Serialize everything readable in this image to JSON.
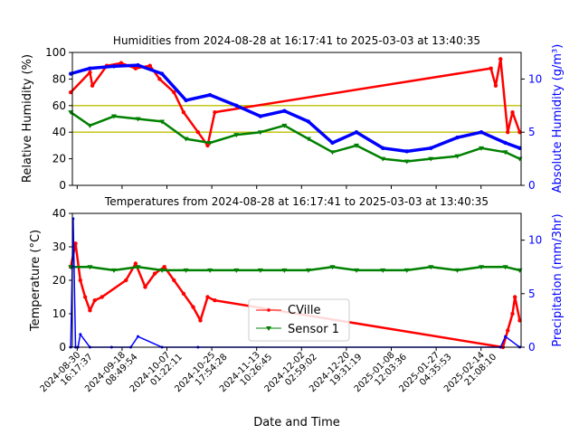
{
  "colors": {
    "cville": "#ff0000",
    "sensor": "#008000",
    "absolute": "#0000ff",
    "precip": "#0000ff",
    "limits": "#bfbf00",
    "axis": "#000000"
  },
  "xlabel": "Date and Time",
  "xticks": [
    {
      "t": "2024-08-30T16:17:37",
      "line1": "2024-08-30",
      "line2": "16:17:37"
    },
    {
      "t": "2024-09-18T08:49:54",
      "line1": "2024-09-18",
      "line2": "08:49:54"
    },
    {
      "t": "2024-10-07T01:22:11",
      "line1": "2024-10-07",
      "line2": "01:22:11"
    },
    {
      "t": "2024-10-25T17:54:28",
      "line1": "2024-10-25",
      "line2": "17:54:28"
    },
    {
      "t": "2024-11-13T10:26:45",
      "line1": "2024-11-13",
      "line2": "10:26:45"
    },
    {
      "t": "2024-12-02T02:59:02",
      "line1": "2024-12-02",
      "line2": "02:59:02"
    },
    {
      "t": "2024-12-20T19:31:19",
      "line1": "2024-12-20",
      "line2": "19:31:19"
    },
    {
      "t": "2025-01-08T12:03:36",
      "line1": "2025-01-08",
      "line2": "12:03:36"
    },
    {
      "t": "2025-01-27T04:35:53",
      "line1": "2025-01-27",
      "line2": "04:35:53"
    },
    {
      "t": "2025-02-14T21:08:10",
      "line1": "2025-02-14",
      "line2": "21:08:10"
    }
  ],
  "xlim": [
    "2024-08-28T16:17:41",
    "2025-03-03T13:40:35"
  ],
  "chart_data": [
    {
      "type": "line",
      "title": "Humidities from 2024-08-28 at 16:17:41 to 2025-03-03 at 13:40:35",
      "ylabel": "Relative Humidity (%)",
      "ylabel_right": "Absolute Humidity (g/m³)",
      "ylim": [
        0,
        100
      ],
      "yticks": [
        0,
        20,
        40,
        60,
        80,
        100
      ],
      "ylim_right": [
        0,
        12.5
      ],
      "yticks_right": [
        0,
        5,
        10
      ],
      "reference_lines": [
        40,
        60
      ],
      "series": [
        {
          "axis": "left",
          "color": "#ff0000",
          "x": [
            "2024-08-28",
            "2024-09-05",
            "2024-09-06",
            "2024-09-12",
            "2024-09-18",
            "2024-09-24",
            "2024-09-30",
            "2024-10-04",
            "2024-10-10",
            "2024-10-14",
            "2024-10-20",
            "2024-10-24",
            "2024-10-27",
            "2025-02-19",
            "2025-02-21",
            "2025-02-23",
            "2025-02-26",
            "2025-02-28",
            "2025-03-03"
          ],
          "y": [
            70,
            85,
            75,
            90,
            92,
            88,
            90,
            80,
            70,
            55,
            40,
            30,
            55,
            88,
            75,
            95,
            40,
            55,
            40
          ]
        },
        {
          "axis": "left",
          "color": "#008000",
          "x": [
            "2024-08-28",
            "2024-09-05",
            "2024-09-15",
            "2024-09-25",
            "2024-10-05",
            "2024-10-15",
            "2024-10-25",
            "2024-11-05",
            "2024-11-15",
            "2024-11-25",
            "2024-12-05",
            "2024-12-15",
            "2024-12-25",
            "2025-01-05",
            "2025-01-15",
            "2025-01-25",
            "2025-02-05",
            "2025-02-15",
            "2025-02-25",
            "2025-03-03"
          ],
          "y": [
            55,
            45,
            52,
            50,
            48,
            35,
            32,
            38,
            40,
            45,
            35,
            25,
            30,
            20,
            18,
            20,
            22,
            28,
            25,
            20
          ]
        },
        {
          "axis": "right",
          "color": "#0000ff",
          "x": [
            "2024-08-28",
            "2024-09-05",
            "2024-09-15",
            "2024-09-25",
            "2024-10-05",
            "2024-10-15",
            "2024-10-25",
            "2024-11-05",
            "2024-11-15",
            "2024-11-25",
            "2024-12-05",
            "2024-12-15",
            "2024-12-25",
            "2025-01-05",
            "2025-01-15",
            "2025-01-25",
            "2025-02-05",
            "2025-02-15",
            "2025-02-25",
            "2025-03-03"
          ],
          "y": [
            10.5,
            11,
            11.2,
            11.3,
            10.5,
            8,
            8.5,
            7.5,
            6.5,
            7,
            6,
            4,
            5,
            3.5,
            3.2,
            3.5,
            4.5,
            5,
            4,
            3.5
          ]
        }
      ]
    },
    {
      "type": "line",
      "title": "Temperatures from 2024-08-28 at 16:17:41 to 2025-03-03 at 13:40:35",
      "ylabel": "Temperature (°C)",
      "ylabel_right": "Precipitation (mm/3hr)",
      "ylim": [
        0,
        40
      ],
      "yticks": [
        0,
        10,
        20,
        30,
        40
      ],
      "ylim_right": [
        0,
        12.5
      ],
      "yticks_right": [
        0,
        5,
        10
      ],
      "legend": {
        "position": "center",
        "entries": [
          "CVille",
          "Sensor 1"
        ]
      },
      "series": [
        {
          "name": "CVille",
          "axis": "left",
          "color": "#ff0000",
          "x": [
            "2024-08-28",
            "2024-08-30",
            "2024-09-01",
            "2024-09-03",
            "2024-09-05",
            "2024-09-07",
            "2024-09-10",
            "2024-09-20",
            "2024-09-24",
            "2024-09-28",
            "2024-10-02",
            "2024-10-06",
            "2024-10-10",
            "2024-10-14",
            "2024-10-18",
            "2024-10-21",
            "2024-10-24",
            "2024-10-27",
            "2025-02-24",
            "2025-02-26",
            "2025-02-28",
            "2025-03-01",
            "2025-03-03"
          ],
          "y": [
            24,
            31,
            20,
            15,
            11,
            14,
            15,
            20,
            25,
            18,
            22,
            24,
            20,
            16,
            12,
            8,
            15,
            14,
            0,
            5,
            10,
            15,
            8
          ]
        },
        {
          "name": "Sensor 1",
          "axis": "left",
          "color": "#008000",
          "x": [
            "2024-08-28",
            "2024-09-05",
            "2024-09-15",
            "2024-09-25",
            "2024-10-05",
            "2024-10-15",
            "2024-10-25",
            "2024-11-05",
            "2024-11-15",
            "2024-11-25",
            "2024-12-05",
            "2024-12-15",
            "2024-12-25",
            "2025-01-05",
            "2025-01-15",
            "2025-01-25",
            "2025-02-05",
            "2025-02-15",
            "2025-02-25",
            "2025-03-03"
          ],
          "y": [
            24,
            24,
            23,
            24,
            23,
            23,
            23,
            23,
            23,
            23,
            23,
            24,
            23,
            23,
            23,
            24,
            23,
            24,
            24,
            23
          ]
        },
        {
          "axis": "right",
          "color": "#0000ff",
          "kind": "precip",
          "x": [
            "2024-08-28",
            "2024-08-29",
            "2024-08-30",
            "2024-08-31",
            "2024-09-01",
            "2024-09-05",
            "2024-09-14",
            "2024-09-22",
            "2024-09-25",
            "2024-10-05",
            "2024-10-20",
            "2025-02-23",
            "2025-02-25",
            "2025-03-03"
          ],
          "y": [
            0,
            12,
            0,
            0,
            1.2,
            0,
            0,
            0,
            1,
            0,
            0,
            0,
            1,
            0
          ]
        }
      ]
    }
  ]
}
